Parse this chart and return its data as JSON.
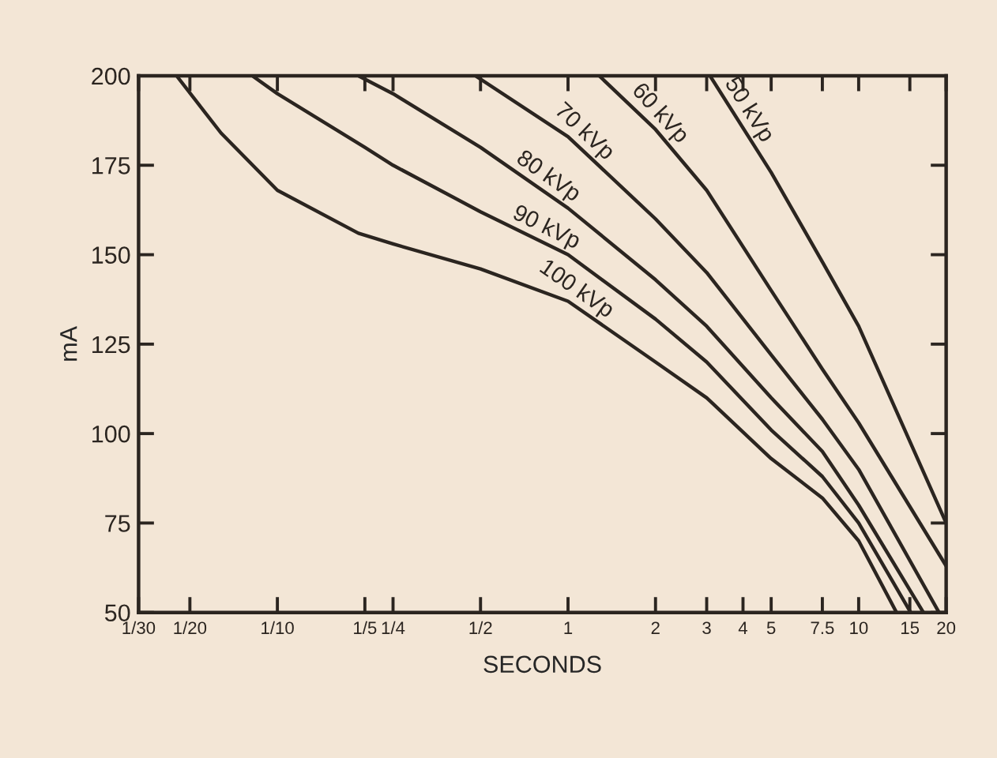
{
  "chart_data": {
    "type": "line",
    "xlabel": "SECONDS",
    "ylabel": "mA",
    "log": "x",
    "xlim": [
      0.0333,
      20
    ],
    "ylim": [
      50,
      200
    ],
    "xticks": [
      {
        "value": 0.0333,
        "label": "1/30"
      },
      {
        "value": 0.05,
        "label": "1/20"
      },
      {
        "value": 0.1,
        "label": "1/10"
      },
      {
        "value": 0.2,
        "label": "1/5"
      },
      {
        "value": 0.25,
        "label": "1/4"
      },
      {
        "value": 0.5,
        "label": "1/2"
      },
      1,
      2,
      3,
      4,
      5,
      7.5,
      10,
      15,
      20
    ],
    "yticks": [
      50,
      75,
      100,
      125,
      150,
      175,
      200
    ],
    "grid": false,
    "marker": "none",
    "line_style": "solid",
    "series": [
      {
        "name": "100 kVp",
        "color": "#2b2520",
        "x": [
          0.045,
          0.064,
          0.1,
          0.19,
          0.25,
          0.5,
          1,
          2,
          3,
          5,
          7.5,
          10,
          13.5
        ],
        "values": [
          200,
          184,
          168,
          156,
          153,
          146,
          137,
          120,
          110,
          93,
          82,
          70,
          50
        ]
      },
      {
        "name": "90 kVp",
        "color": "#2b2520",
        "x": [
          0.082,
          0.1,
          0.2,
          0.25,
          0.5,
          1,
          2,
          3,
          5,
          7.5,
          10,
          15.1
        ],
        "values": [
          200,
          195,
          180,
          175,
          162,
          150,
          132,
          120,
          101,
          88,
          75,
          50
        ]
      },
      {
        "name": "80 kVp",
        "color": "#2b2520",
        "x": [
          0.19,
          0.25,
          0.5,
          1,
          2,
          3,
          5,
          7.5,
          10,
          16.7
        ],
        "values": [
          200,
          195,
          180,
          163,
          143,
          130,
          110,
          95,
          80,
          50
        ]
      },
      {
        "name": "70 kVp",
        "color": "#2b2520",
        "x": [
          0.48,
          1,
          2,
          3,
          5,
          7.5,
          10,
          18.9
        ],
        "values": [
          200,
          183,
          160,
          145,
          122,
          104,
          90,
          50
        ]
      },
      {
        "name": "60 kVp",
        "color": "#2b2520",
        "x": [
          1.28,
          2,
          3,
          5,
          7.5,
          10,
          20
        ],
        "values": [
          200,
          185,
          168,
          140,
          118,
          103,
          63
        ]
      },
      {
        "name": "50 kVp",
        "color": "#2b2520",
        "x": [
          3.08,
          5,
          7.5,
          10,
          20
        ],
        "values": [
          200,
          173,
          148,
          130,
          75
        ]
      }
    ]
  }
}
